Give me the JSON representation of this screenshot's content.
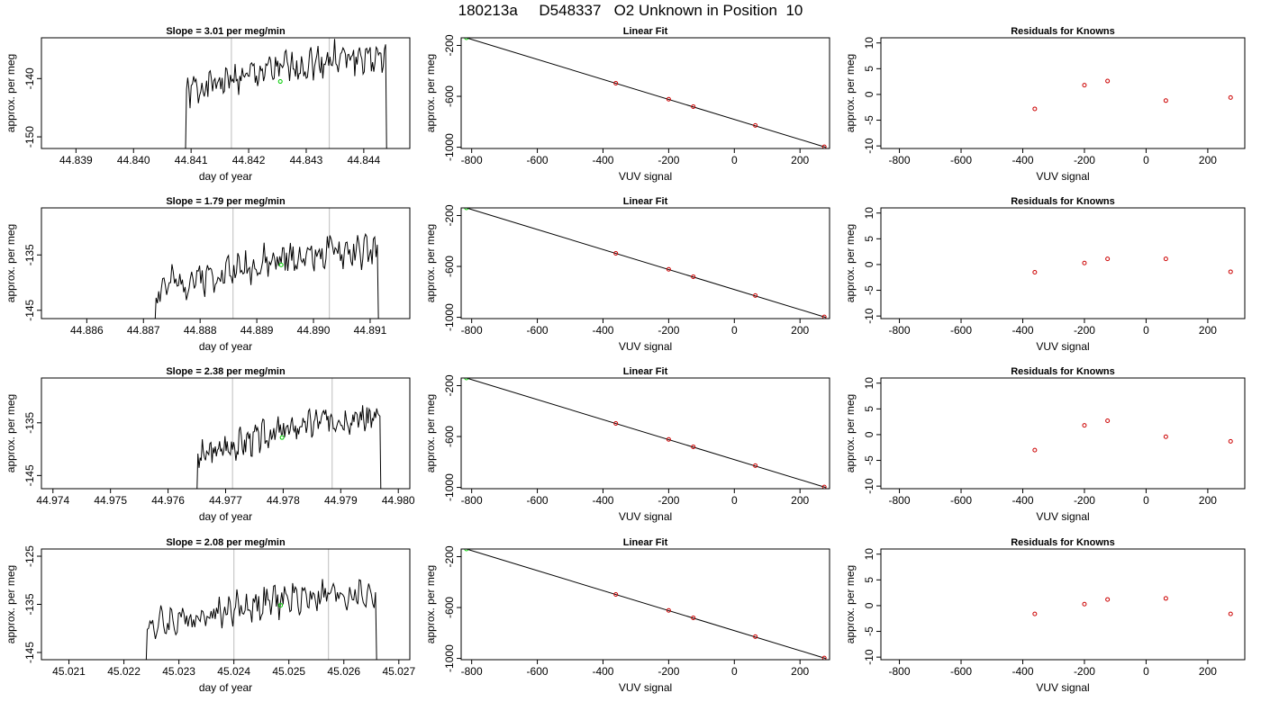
{
  "page_title": "180213a     D548337   O2 Unknown in Position  10",
  "colors": {
    "trace": "#000000",
    "marker_vline": "#c8c8c8",
    "unknown_point": "#00cc00",
    "known_point": "#cc0000",
    "fit_line": "#000000"
  },
  "chart_data": [
    {
      "type": "line",
      "title": "Slope =  3.01  per meg/min",
      "xlabel": "day of year",
      "ylabel": "approx. per meg",
      "xlim": [
        44.8384,
        44.8448
      ],
      "ylim": [
        -152,
        -133
      ],
      "xticks": [
        "44.839",
        "44.840",
        "44.841",
        "44.842",
        "44.843",
        "44.844"
      ],
      "yticks": [
        "-150",
        "-140"
      ],
      "vlines": [
        44.8417,
        44.8434
      ],
      "unknown_point": {
        "x": 44.84255,
        "y": -140.5
      },
      "series": [
        {
          "start": 44.8409,
          "end": 44.8444,
          "base": -142.5,
          "rise": 6,
          "amp": 2.2,
          "seed": 1
        }
      ]
    },
    {
      "type": "scatter",
      "title": "Linear Fit",
      "xlabel": "VUV signal",
      "ylabel": "approx. per meg",
      "xlim": [
        -832,
        290
      ],
      "ylim": [
        -1010,
        -140
      ],
      "xticks": [
        "-800",
        "-600",
        "-400",
        "-200",
        "0",
        "200"
      ],
      "yticks": [
        "-200",
        "-600",
        "-1000"
      ],
      "fit": [
        [
          -816,
          -140
        ],
        [
          278,
          -1000
        ]
      ],
      "unknown_point": {
        "x": -816,
        "y": -140
      },
      "known_points": [
        {
          "x": -361,
          "y": -497
        },
        {
          "x": -200,
          "y": -623
        },
        {
          "x": -125,
          "y": -681
        },
        {
          "x": 64,
          "y": -829
        },
        {
          "x": 274,
          "y": -997
        }
      ]
    },
    {
      "type": "scatter",
      "title": "Residuals for Knowns",
      "xlabel": "VUV signal",
      "ylabel": "approx. per meg",
      "xlim": [
        -860,
        320
      ],
      "ylim": [
        -10.5,
        11
      ],
      "xticks": [
        "-800",
        "-600",
        "-400",
        "-200",
        "0",
        "200"
      ],
      "yticks": [
        "-10",
        "-5",
        "0",
        "5",
        "10"
      ],
      "points": [
        {
          "x": -361,
          "y": -2.8
        },
        {
          "x": -200,
          "y": 1.8
        },
        {
          "x": -125,
          "y": 2.6
        },
        {
          "x": 64,
          "y": -1.2
        },
        {
          "x": 274,
          "y": -0.6
        }
      ]
    },
    {
      "type": "line",
      "title": "Slope =  1.79  per meg/min",
      "xlabel": "day of year",
      "ylabel": "approx. per meg",
      "xlim": [
        44.8852,
        44.8917
      ],
      "ylim": [
        -146.5,
        -126.5
      ],
      "xticks": [
        "44.886",
        "44.887",
        "44.888",
        "44.889",
        "44.890",
        "44.891"
      ],
      "yticks": [
        "-145",
        "-135"
      ],
      "vlines": [
        44.88858,
        44.89028
      ],
      "unknown_point": {
        "x": 44.88943,
        "y": -136.8
      },
      "series": [
        {
          "start": 44.8872,
          "end": 44.89115,
          "base": -141.5,
          "rise": 7,
          "amp": 2.4,
          "seed": 2
        }
      ]
    },
    {
      "type": "scatter",
      "title": "Linear Fit",
      "xlabel": "VUV signal",
      "ylabel": "approx. per meg",
      "xlim": [
        -832,
        290
      ],
      "ylim": [
        -1010,
        -140
      ],
      "xticks": [
        "-800",
        "-600",
        "-400",
        "-200",
        "0",
        "200"
      ],
      "yticks": [
        "-200",
        "-600",
        "-1000"
      ],
      "fit": [
        [
          -816,
          -140
        ],
        [
          278,
          -1000
        ]
      ],
      "unknown_point": {
        "x": -816,
        "y": -140
      },
      "known_points": [
        {
          "x": -361,
          "y": -497
        },
        {
          "x": -200,
          "y": -623
        },
        {
          "x": -125,
          "y": -681
        },
        {
          "x": 64,
          "y": -829
        },
        {
          "x": 274,
          "y": -997
        }
      ]
    },
    {
      "type": "scatter",
      "title": "Residuals for Knowns",
      "xlabel": "VUV signal",
      "ylabel": "approx. per meg",
      "xlim": [
        -860,
        320
      ],
      "ylim": [
        -10.5,
        11
      ],
      "xticks": [
        "-800",
        "-600",
        "-400",
        "-200",
        "0",
        "200"
      ],
      "yticks": [
        "-10",
        "-5",
        "0",
        "5",
        "10"
      ],
      "points": [
        {
          "x": -361,
          "y": -1.5
        },
        {
          "x": -200,
          "y": 0.3
        },
        {
          "x": -125,
          "y": 1.1
        },
        {
          "x": 64,
          "y": 1.1
        },
        {
          "x": 274,
          "y": -1.4
        }
      ]
    },
    {
      "type": "line",
      "title": "Slope =  2.38  per meg/min",
      "xlabel": "day of year",
      "ylabel": "approx. per meg",
      "xlim": [
        44.9738,
        44.9802
      ],
      "ylim": [
        -147.5,
        -126.5
      ],
      "xticks": [
        "44.974",
        "44.975",
        "44.976",
        "44.977",
        "44.978",
        "44.979",
        "44.980"
      ],
      "yticks": [
        "-145",
        "-135"
      ],
      "vlines": [
        44.97712,
        44.97885
      ],
      "unknown_point": {
        "x": 44.97798,
        "y": -137.8
      },
      "series": [
        {
          "start": 44.9765,
          "end": 44.9797,
          "base": -142,
          "rise": 8,
          "amp": 2.2,
          "seed": 3
        }
      ]
    },
    {
      "type": "scatter",
      "title": "Linear Fit",
      "xlabel": "VUV signal",
      "ylabel": "approx. per meg",
      "xlim": [
        -832,
        290
      ],
      "ylim": [
        -1010,
        -140
      ],
      "xticks": [
        "-800",
        "-600",
        "-400",
        "-200",
        "0",
        "200"
      ],
      "yticks": [
        "-200",
        "-600",
        "-1000"
      ],
      "fit": [
        [
          -816,
          -140
        ],
        [
          278,
          -1000
        ]
      ],
      "unknown_point": {
        "x": -816,
        "y": -140
      },
      "known_points": [
        {
          "x": -361,
          "y": -497
        },
        {
          "x": -200,
          "y": -623
        },
        {
          "x": -125,
          "y": -681
        },
        {
          "x": 64,
          "y": -829
        },
        {
          "x": 274,
          "y": -997
        }
      ]
    },
    {
      "type": "scatter",
      "title": "Residuals for Knowns",
      "xlabel": "VUV signal",
      "ylabel": "approx. per meg",
      "xlim": [
        -860,
        320
      ],
      "ylim": [
        -10.5,
        11
      ],
      "xticks": [
        "-800",
        "-600",
        "-400",
        "-200",
        "0",
        "200"
      ],
      "yticks": [
        "-10",
        "-5",
        "0",
        "5",
        "10"
      ],
      "points": [
        {
          "x": -361,
          "y": -3.0
        },
        {
          "x": -200,
          "y": 1.8
        },
        {
          "x": -125,
          "y": 2.7
        },
        {
          "x": 64,
          "y": -0.4
        },
        {
          "x": 274,
          "y": -1.3
        }
      ]
    },
    {
      "type": "line",
      "title": "Slope =  2.08  per meg/min",
      "xlabel": "day of year",
      "ylabel": "approx. per meg",
      "xlim": [
        45.0205,
        45.0272
      ],
      "ylim": [
        -146.5,
        -123.5
      ],
      "xticks": [
        "45.021",
        "45.022",
        "45.023",
        "45.024",
        "45.025",
        "45.026",
        "45.027"
      ],
      "yticks": [
        "-145",
        "-135",
        "-125"
      ],
      "vlines": [
        45.024,
        45.02572
      ],
      "unknown_point": {
        "x": 45.02485,
        "y": -135.2
      },
      "series": [
        {
          "start": 45.0224,
          "end": 45.0266,
          "base": -140,
          "rise": 7,
          "amp": 2.6,
          "seed": 4
        }
      ]
    },
    {
      "type": "scatter",
      "title": "Linear Fit",
      "xlabel": "VUV signal",
      "ylabel": "approx. per meg",
      "xlim": [
        -832,
        290
      ],
      "ylim": [
        -1010,
        -140
      ],
      "xticks": [
        "-800",
        "-600",
        "-400",
        "-200",
        "0",
        "200"
      ],
      "yticks": [
        "-200",
        "-600",
        "-1000"
      ],
      "fit": [
        [
          -816,
          -140
        ],
        [
          278,
          -1000
        ]
      ],
      "unknown_point": {
        "x": -816,
        "y": -140
      },
      "known_points": [
        {
          "x": -361,
          "y": -497
        },
        {
          "x": -200,
          "y": -623
        },
        {
          "x": -125,
          "y": -681
        },
        {
          "x": 64,
          "y": -829
        },
        {
          "x": 274,
          "y": -997
        }
      ]
    },
    {
      "type": "scatter",
      "title": "Residuals for Knowns",
      "xlabel": "VUV signal",
      "ylabel": "approx. per meg",
      "xlim": [
        -860,
        320
      ],
      "ylim": [
        -10.5,
        11
      ],
      "xticks": [
        "-800",
        "-600",
        "-400",
        "-200",
        "0",
        "200"
      ],
      "yticks": [
        "-10",
        "-5",
        "0",
        "5",
        "10"
      ],
      "points": [
        {
          "x": -361,
          "y": -1.6
        },
        {
          "x": -200,
          "y": 0.3
        },
        {
          "x": -125,
          "y": 1.2
        },
        {
          "x": 64,
          "y": 1.4
        },
        {
          "x": 274,
          "y": -1.6
        }
      ]
    }
  ]
}
